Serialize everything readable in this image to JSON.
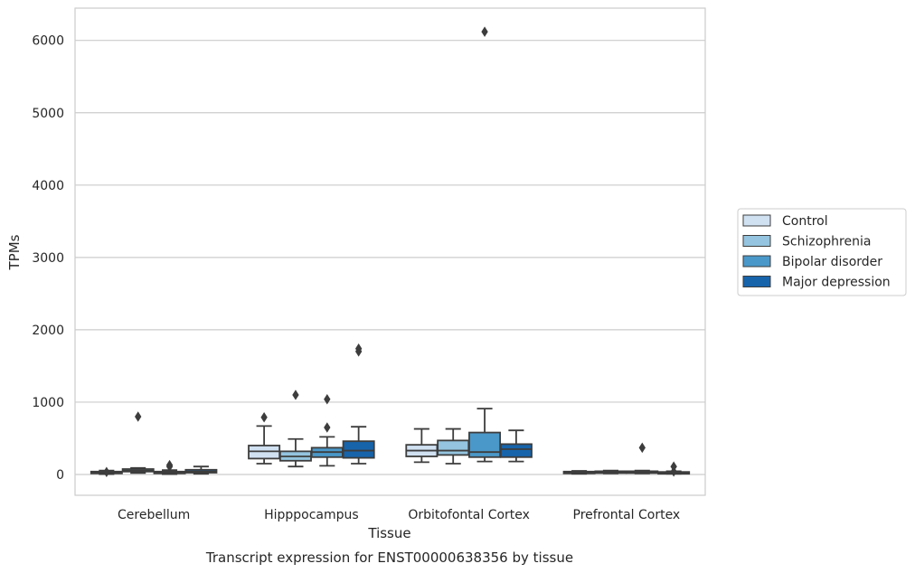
{
  "chart_data": {
    "type": "box",
    "xlabel": "Tissue",
    "ylabel": "TPMs",
    "caption": "Transcript expression for ENST00000638356 by tissue",
    "ylim": [
      -300,
      6450
    ],
    "yticks": [
      0,
      1000,
      2000,
      3000,
      4000,
      5000,
      6000
    ],
    "grid": "horizontal",
    "legend_position": "right",
    "categories": [
      "Cerebellum",
      "Hipppocampus",
      "Orbitofontal Cortex",
      "Prefrontal Cortex"
    ],
    "series": [
      {
        "name": "Control",
        "color": "#d0e1f2",
        "boxes": [
          {
            "whislo": 5,
            "q1": 15,
            "med": 25,
            "q3": 40,
            "whishi": 55,
            "fliers": [
              35
            ]
          },
          {
            "whislo": 150,
            "q1": 220,
            "med": 320,
            "q3": 400,
            "whishi": 670,
            "fliers": [
              790
            ]
          },
          {
            "whislo": 170,
            "q1": 250,
            "med": 330,
            "q3": 410,
            "whishi": 630,
            "fliers": []
          },
          {
            "whislo": 10,
            "q1": 20,
            "med": 28,
            "q3": 40,
            "whishi": 50,
            "fliers": []
          }
        ]
      },
      {
        "name": "Schizophrenia",
        "color": "#94c4df",
        "boxes": [
          {
            "whislo": 20,
            "q1": 40,
            "med": 55,
            "q3": 75,
            "whishi": 90,
            "fliers": [
              800
            ]
          },
          {
            "whislo": 110,
            "q1": 190,
            "med": 250,
            "q3": 320,
            "whishi": 490,
            "fliers": [
              1100
            ]
          },
          {
            "whislo": 150,
            "q1": 270,
            "med": 330,
            "q3": 470,
            "whishi": 630,
            "fliers": []
          },
          {
            "whislo": 15,
            "q1": 25,
            "med": 35,
            "q3": 45,
            "whishi": 55,
            "fliers": []
          }
        ]
      },
      {
        "name": "Bipolar disorder",
        "color": "#4a98c9",
        "boxes": [
          {
            "whislo": 5,
            "q1": 15,
            "med": 25,
            "q3": 40,
            "whishi": 60,
            "fliers": [
              130,
              110
            ]
          },
          {
            "whislo": 120,
            "q1": 240,
            "med": 310,
            "q3": 370,
            "whishi": 520,
            "fliers": [
              650,
              1040
            ]
          },
          {
            "whislo": 180,
            "q1": 240,
            "med": 310,
            "q3": 580,
            "whishi": 910,
            "fliers": [
              6120
            ]
          },
          {
            "whislo": 15,
            "q1": 25,
            "med": 32,
            "q3": 45,
            "whishi": 55,
            "fliers": [
              370
            ]
          }
        ]
      },
      {
        "name": "Major depression",
        "color": "#1764ab",
        "boxes": [
          {
            "whislo": 10,
            "q1": 25,
            "med": 40,
            "q3": 65,
            "whishi": 110,
            "fliers": []
          },
          {
            "whislo": 150,
            "q1": 230,
            "med": 330,
            "q3": 460,
            "whishi": 660,
            "fliers": [
              1700,
              1740
            ]
          },
          {
            "whislo": 180,
            "q1": 240,
            "med": 350,
            "q3": 420,
            "whishi": 610,
            "fliers": []
          },
          {
            "whislo": 10,
            "q1": 20,
            "med": 28,
            "q3": 35,
            "whishi": 45,
            "fliers": [
              40,
              110
            ]
          }
        ]
      }
    ]
  }
}
